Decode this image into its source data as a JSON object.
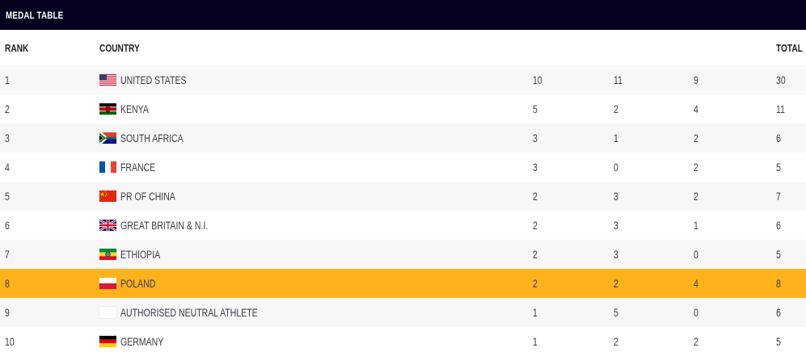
{
  "title": "MEDAL TABLE",
  "header": {
    "rank": "RANK",
    "country": "COUNTRY",
    "total": "TOTAL",
    "gold_icon": "gold-medal-icon",
    "silver_icon": "silver-medal-icon",
    "bronze_icon": "bronze-medal-icon"
  },
  "colors": {
    "header_bg": "#04031f",
    "highlight": "#ffb21c",
    "gold": "#ffcf0a",
    "silver": "#dcdcdf",
    "bronze": "#c8772a"
  },
  "rows": [
    {
      "rank": "1",
      "country": "UNITED STATES",
      "flag": "us-flag-icon",
      "gold": "10",
      "silver": "11",
      "bronze": "9",
      "total": "30",
      "highlighted": false
    },
    {
      "rank": "2",
      "country": "KENYA",
      "flag": "kenya-flag-icon",
      "gold": "5",
      "silver": "2",
      "bronze": "4",
      "total": "11",
      "highlighted": false
    },
    {
      "rank": "3",
      "country": "SOUTH AFRICA",
      "flag": "south-africa-flag-icon",
      "gold": "3",
      "silver": "1",
      "bronze": "2",
      "total": "6",
      "highlighted": false
    },
    {
      "rank": "4",
      "country": "FRANCE",
      "flag": "france-flag-icon",
      "gold": "3",
      "silver": "0",
      "bronze": "2",
      "total": "5",
      "highlighted": false
    },
    {
      "rank": "5",
      "country": "PR OF CHINA",
      "flag": "china-flag-icon",
      "gold": "2",
      "silver": "3",
      "bronze": "2",
      "total": "7",
      "highlighted": false
    },
    {
      "rank": "6",
      "country": "GREAT BRITAIN & N.I.",
      "flag": "uk-flag-icon",
      "gold": "2",
      "silver": "3",
      "bronze": "1",
      "total": "6",
      "highlighted": false
    },
    {
      "rank": "7",
      "country": "ETHIOPIA",
      "flag": "ethiopia-flag-icon",
      "gold": "2",
      "silver": "3",
      "bronze": "0",
      "total": "5",
      "highlighted": false
    },
    {
      "rank": "8",
      "country": "POLAND",
      "flag": "poland-flag-icon",
      "gold": "2",
      "silver": "2",
      "bronze": "4",
      "total": "8",
      "highlighted": true
    },
    {
      "rank": "9",
      "country": "AUTHORISED NEUTRAL ATHLETE",
      "flag": "blank-flag-icon",
      "gold": "1",
      "silver": "5",
      "bronze": "0",
      "total": "6",
      "highlighted": false
    },
    {
      "rank": "10",
      "country": "GERMANY",
      "flag": "germany-flag-icon",
      "gold": "1",
      "silver": "2",
      "bronze": "2",
      "total": "5",
      "highlighted": false
    }
  ]
}
